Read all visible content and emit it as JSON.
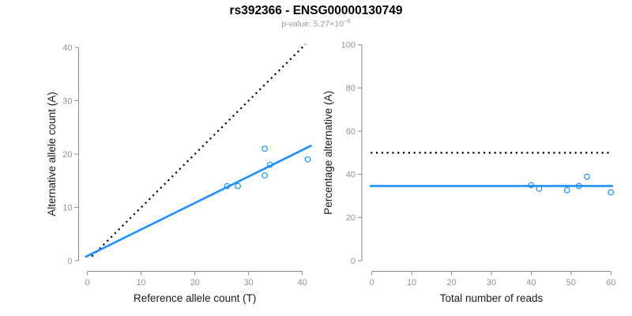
{
  "header": {
    "title": "rs392366 - ENSG00000130749",
    "pvalue_prefix": "p-value: ",
    "pvalue_mantissa": "5.27",
    "pvalue_times": "×10",
    "pvalue_exponent": "−8"
  },
  "colors": {
    "line_blue": "#1E90FF",
    "line_black": "#000000",
    "axis_gray": "#8c8c8c",
    "tick_text_gray": "#949494",
    "label_dark": "#1a1a1a",
    "background": "#ffffff"
  },
  "chart_data": [
    {
      "type": "scatter",
      "name": "allele-count-scatter",
      "xlabel": "Reference allele count (T)",
      "ylabel": "Alternative allele count (A)",
      "xlim": [
        0,
        40
      ],
      "ylim": [
        0,
        40
      ],
      "xticks": [
        0,
        10,
        20,
        30,
        40
      ],
      "yticks": [
        0,
        10,
        20,
        30,
        40
      ],
      "grid": false,
      "legend": null,
      "points": [
        [
          26,
          14
        ],
        [
          28,
          14
        ],
        [
          33,
          16
        ],
        [
          33,
          21
        ],
        [
          34,
          18
        ],
        [
          41,
          19
        ]
      ],
      "lines": [
        {
          "name": "identity-line",
          "style": "dotted",
          "color": "black",
          "points": [
            [
              0.8,
              0.8
            ],
            [
              40.6,
              40.6
            ]
          ]
        },
        {
          "name": "fit-line",
          "style": "solid",
          "color": "blue",
          "points": [
            [
              -0.3,
              0.75
            ],
            [
              41.6,
              21.55
            ]
          ]
        }
      ]
    },
    {
      "type": "scatter",
      "name": "percentage-alternative-scatter",
      "xlabel": "Total number of reads",
      "ylabel": "Percentage alternative (A)",
      "xlim": [
        0,
        60
      ],
      "ylim": [
        0,
        100
      ],
      "xticks": [
        0,
        10,
        20,
        30,
        40,
        50,
        60
      ],
      "yticks": [
        0,
        20,
        40,
        60,
        80,
        100
      ],
      "grid": false,
      "legend": null,
      "points": [
        [
          40,
          35.0
        ],
        [
          42,
          33.3
        ],
        [
          49,
          32.7
        ],
        [
          52,
          34.6
        ],
        [
          54,
          38.9
        ],
        [
          60,
          31.7
        ]
      ],
      "lines": [
        {
          "name": "fifty-percent-line",
          "style": "dotted",
          "color": "black",
          "points": [
            [
              -0.3,
              50
            ],
            [
              60.3,
              50
            ]
          ]
        },
        {
          "name": "mean-percentage-line",
          "style": "solid",
          "color": "blue",
          "points": [
            [
              -0.3,
              34.6
            ],
            [
              60.3,
              34.6
            ]
          ]
        }
      ]
    }
  ]
}
